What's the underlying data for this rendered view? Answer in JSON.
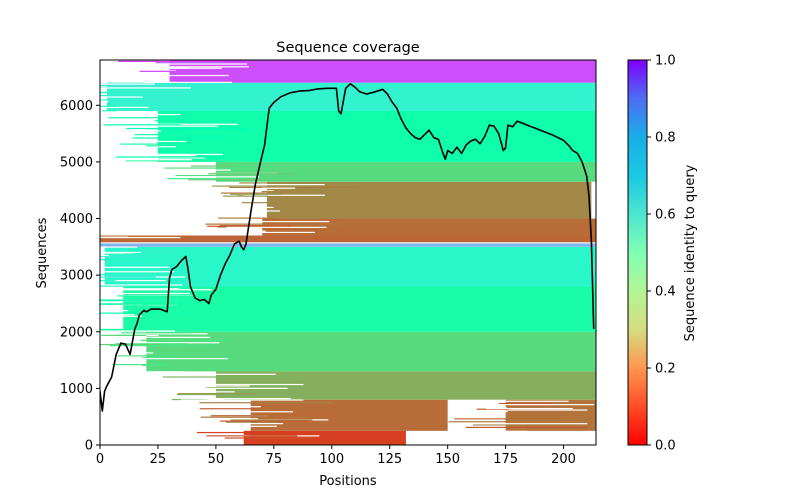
{
  "chart_data": {
    "type": "heatmap",
    "title": "Sequence coverage",
    "xlabel": "Positions",
    "ylabel": "Sequences",
    "xlim": [
      0,
      214
    ],
    "ylim": [
      0,
      6800
    ],
    "xticks": [
      0,
      25,
      50,
      75,
      100,
      125,
      150,
      175,
      200
    ],
    "xtick_labels": [
      "0",
      "25",
      "50",
      "75",
      "100",
      "125",
      "150",
      "175",
      "200"
    ],
    "yticks": [
      0,
      1000,
      2000,
      3000,
      4000,
      5000,
      6000
    ],
    "ytick_labels": [
      "0",
      "1000",
      "2000",
      "3000",
      "4000",
      "5000",
      "6000"
    ],
    "colorbar": {
      "label": "Sequence identity to query",
      "colormap": "rainbow_r",
      "range": [
        0.0,
        1.0
      ],
      "ticks": [
        0.0,
        0.2,
        0.4,
        0.6,
        0.8,
        1.0
      ],
      "tick_labels": [
        "0.0",
        "0.2",
        "0.4",
        "0.6",
        "0.8",
        "1.0"
      ]
    },
    "bands": [
      {
        "y0": 0,
        "y1": 250,
        "x0": 62,
        "x1": 132,
        "identity": 0.08
      },
      {
        "y0": 250,
        "y1": 800,
        "x0": 65,
        "x1": 150,
        "identity": 0.14
      },
      {
        "y0": 250,
        "y1": 800,
        "x0": 175,
        "x1": 214,
        "identity": 0.15
      },
      {
        "y0": 800,
        "y1": 1300,
        "x0": 50,
        "x1": 214,
        "identity": 0.24
      },
      {
        "y0": 1300,
        "y1": 2000,
        "x0": 20,
        "x1": 214,
        "identity": 0.33
      },
      {
        "y0": 2000,
        "y1": 2800,
        "x0": 10,
        "x1": 214,
        "identity": 0.45
      },
      {
        "y0": 2800,
        "y1": 3500,
        "x0": 2,
        "x1": 214,
        "identity": 0.58
      },
      {
        "y0": 3500,
        "y1": 3560,
        "x0": 0,
        "x1": 214,
        "identity": 0.75
      },
      {
        "y0": 3580,
        "y1": 3700,
        "x0": 0,
        "x1": 214,
        "identity": 0.13
      },
      {
        "y0": 3700,
        "y1": 4000,
        "x0": 70,
        "x1": 214,
        "identity": 0.14
      },
      {
        "y0": 4000,
        "y1": 4650,
        "x0": 72,
        "x1": 212,
        "identity": 0.18
      },
      {
        "y0": 4650,
        "y1": 5000,
        "x0": 50,
        "x1": 214,
        "identity": 0.33
      },
      {
        "y0": 5000,
        "y1": 5900,
        "x0": 25,
        "x1": 214,
        "identity": 0.47
      },
      {
        "y0": 5900,
        "y1": 6400,
        "x0": 3,
        "x1": 214,
        "identity": 0.6
      },
      {
        "y0": 6400,
        "y1": 6800,
        "x0": 30,
        "x1": 214,
        "identity": 0.9
      }
    ],
    "coverage_line": {
      "x": [
        0,
        1,
        2,
        3,
        5,
        7,
        9,
        11,
        13,
        15,
        16,
        17,
        19,
        20,
        22,
        24,
        26,
        29,
        30,
        31,
        33,
        35,
        37,
        38,
        39,
        41,
        43,
        45,
        47,
        48,
        50,
        52,
        54,
        56,
        58,
        60,
        61,
        62,
        63,
        65,
        67,
        69,
        71,
        73,
        75,
        78,
        82,
        86,
        90,
        94,
        98,
        102,
        103,
        104,
        106,
        108,
        110,
        112,
        115,
        118,
        122,
        124,
        126,
        128,
        130,
        132,
        134,
        136,
        138,
        140,
        142,
        144,
        146,
        148,
        149,
        150,
        152,
        154,
        156,
        158,
        160,
        162,
        164,
        166,
        168,
        170,
        172,
        174,
        175,
        176,
        178,
        180,
        185,
        190,
        195,
        200,
        202,
        204,
        206,
        208,
        210,
        211,
        212,
        213
      ],
      "y": [
        950,
        600,
        950,
        1050,
        1200,
        1600,
        1800,
        1780,
        1600,
        2050,
        2150,
        2300,
        2380,
        2350,
        2400,
        2400,
        2400,
        2350,
        2950,
        3100,
        3150,
        3250,
        3330,
        3100,
        2800,
        2600,
        2550,
        2570,
        2500,
        2650,
        2750,
        3000,
        3200,
        3350,
        3550,
        3600,
        3500,
        3450,
        3550,
        4100,
        4600,
        4950,
        5300,
        5950,
        6050,
        6150,
        6220,
        6250,
        6260,
        6290,
        6300,
        6300,
        5900,
        5850,
        6300,
        6380,
        6320,
        6240,
        6200,
        6230,
        6280,
        6200,
        6060,
        5950,
        5750,
        5600,
        5500,
        5430,
        5400,
        5480,
        5560,
        5430,
        5400,
        5150,
        5050,
        5200,
        5150,
        5260,
        5150,
        5300,
        5370,
        5400,
        5320,
        5450,
        5650,
        5630,
        5500,
        5200,
        5250,
        5650,
        5620,
        5720,
        5640,
        5560,
        5480,
        5380,
        5300,
        5200,
        5150,
        5000,
        4750,
        4400,
        3600,
        2050
      ]
    }
  }
}
